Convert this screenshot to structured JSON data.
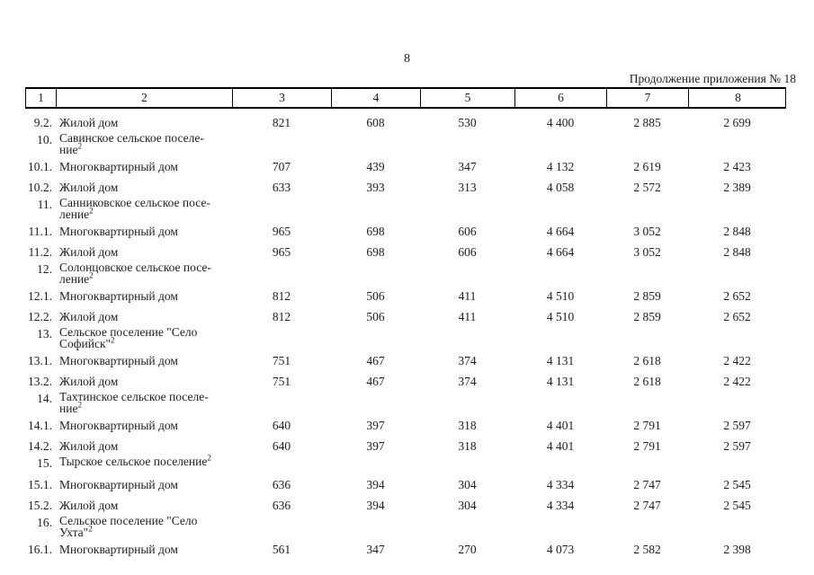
{
  "page": {
    "number": "8",
    "continuation": "Продолжение приложения № 18"
  },
  "table": {
    "header": [
      "1",
      "2",
      "3",
      "4",
      "5",
      "6",
      "7",
      "8"
    ],
    "rows": [
      {
        "type": "data",
        "num": "9.2.",
        "name": "Жилой дом",
        "values": [
          "821",
          "608",
          "530",
          "4 400",
          "2 885",
          "2 699"
        ]
      },
      {
        "type": "section",
        "num": "10.",
        "lines": [
          "Савинское сельское поселе-",
          "ние"
        ],
        "sup": "2"
      },
      {
        "type": "data",
        "num": "10.1.",
        "name": "Многоквартирный дом",
        "values": [
          "707",
          "439",
          "347",
          "4 132",
          "2 619",
          "2 423"
        ]
      },
      {
        "type": "data",
        "num": "10.2.",
        "name": "Жилой дом",
        "values": [
          "633",
          "393",
          "313",
          "4 058",
          "2 572",
          "2 389"
        ]
      },
      {
        "type": "section",
        "num": "11.",
        "lines": [
          "Санниковское сельское посе-",
          "ление"
        ],
        "sup": "2"
      },
      {
        "type": "data",
        "num": "11.1.",
        "name": "Многоквартирный дом",
        "values": [
          "965",
          "698",
          "606",
          "4 664",
          "3 052",
          "2 848"
        ]
      },
      {
        "type": "data",
        "num": "11.2.",
        "name": "Жилой дом",
        "values": [
          "965",
          "698",
          "606",
          "4 664",
          "3 052",
          "2 848"
        ]
      },
      {
        "type": "section",
        "num": "12.",
        "lines": [
          "Солонцовское сельское посе-",
          "ление"
        ],
        "sup": "2"
      },
      {
        "type": "data",
        "num": "12.1.",
        "name": "Многоквартирный дом",
        "values": [
          "812",
          "506",
          "411",
          "4 510",
          "2 859",
          "2 652"
        ]
      },
      {
        "type": "data",
        "num": "12.2.",
        "name": "Жилой дом",
        "values": [
          "812",
          "506",
          "411",
          "4 510",
          "2 859",
          "2 652"
        ]
      },
      {
        "type": "section",
        "num": "13.",
        "lines": [
          "Сельское поселение \"Село",
          "Софийск\""
        ],
        "sup": "2"
      },
      {
        "type": "data",
        "num": "13.1.",
        "name": "Многоквартирный дом",
        "values": [
          "751",
          "467",
          "374",
          "4 131",
          "2 618",
          "2 422"
        ]
      },
      {
        "type": "data",
        "num": "13.2.",
        "name": "Жилой дом",
        "values": [
          "751",
          "467",
          "374",
          "4 131",
          "2 618",
          "2 422"
        ]
      },
      {
        "type": "section",
        "num": "14.",
        "lines": [
          "Тахтинское сельское поселе-",
          "ние"
        ],
        "sup": "2"
      },
      {
        "type": "data",
        "num": "14.1.",
        "name": "Многоквартирный дом",
        "values": [
          "640",
          "397",
          "318",
          "4 401",
          "2 791",
          "2 597"
        ]
      },
      {
        "type": "data",
        "num": "14.2.",
        "name": "Жилой дом",
        "values": [
          "640",
          "397",
          "318",
          "4 401",
          "2 791",
          "2 597"
        ]
      },
      {
        "type": "section",
        "num": "15.",
        "lines": [
          "Тырское сельское поселение"
        ],
        "sup": "2"
      },
      {
        "type": "data",
        "num": "15.1.",
        "name": "Многоквартирный дом",
        "values": [
          "636",
          "394",
          "304",
          "4 334",
          "2 747",
          "2 545"
        ]
      },
      {
        "type": "data",
        "num": "15.2.",
        "name": "Жилой дом",
        "values": [
          "636",
          "394",
          "304",
          "4 334",
          "2 747",
          "2 545"
        ]
      },
      {
        "type": "section",
        "num": "16.",
        "lines": [
          "Сельское поселение \"Село",
          "Ухта\""
        ],
        "sup": "2"
      },
      {
        "type": "data",
        "num": "16.1.",
        "name": "Многоквартирный дом",
        "values": [
          "561",
          "347",
          "270",
          "4 073",
          "2 582",
          "2 398"
        ]
      }
    ]
  }
}
